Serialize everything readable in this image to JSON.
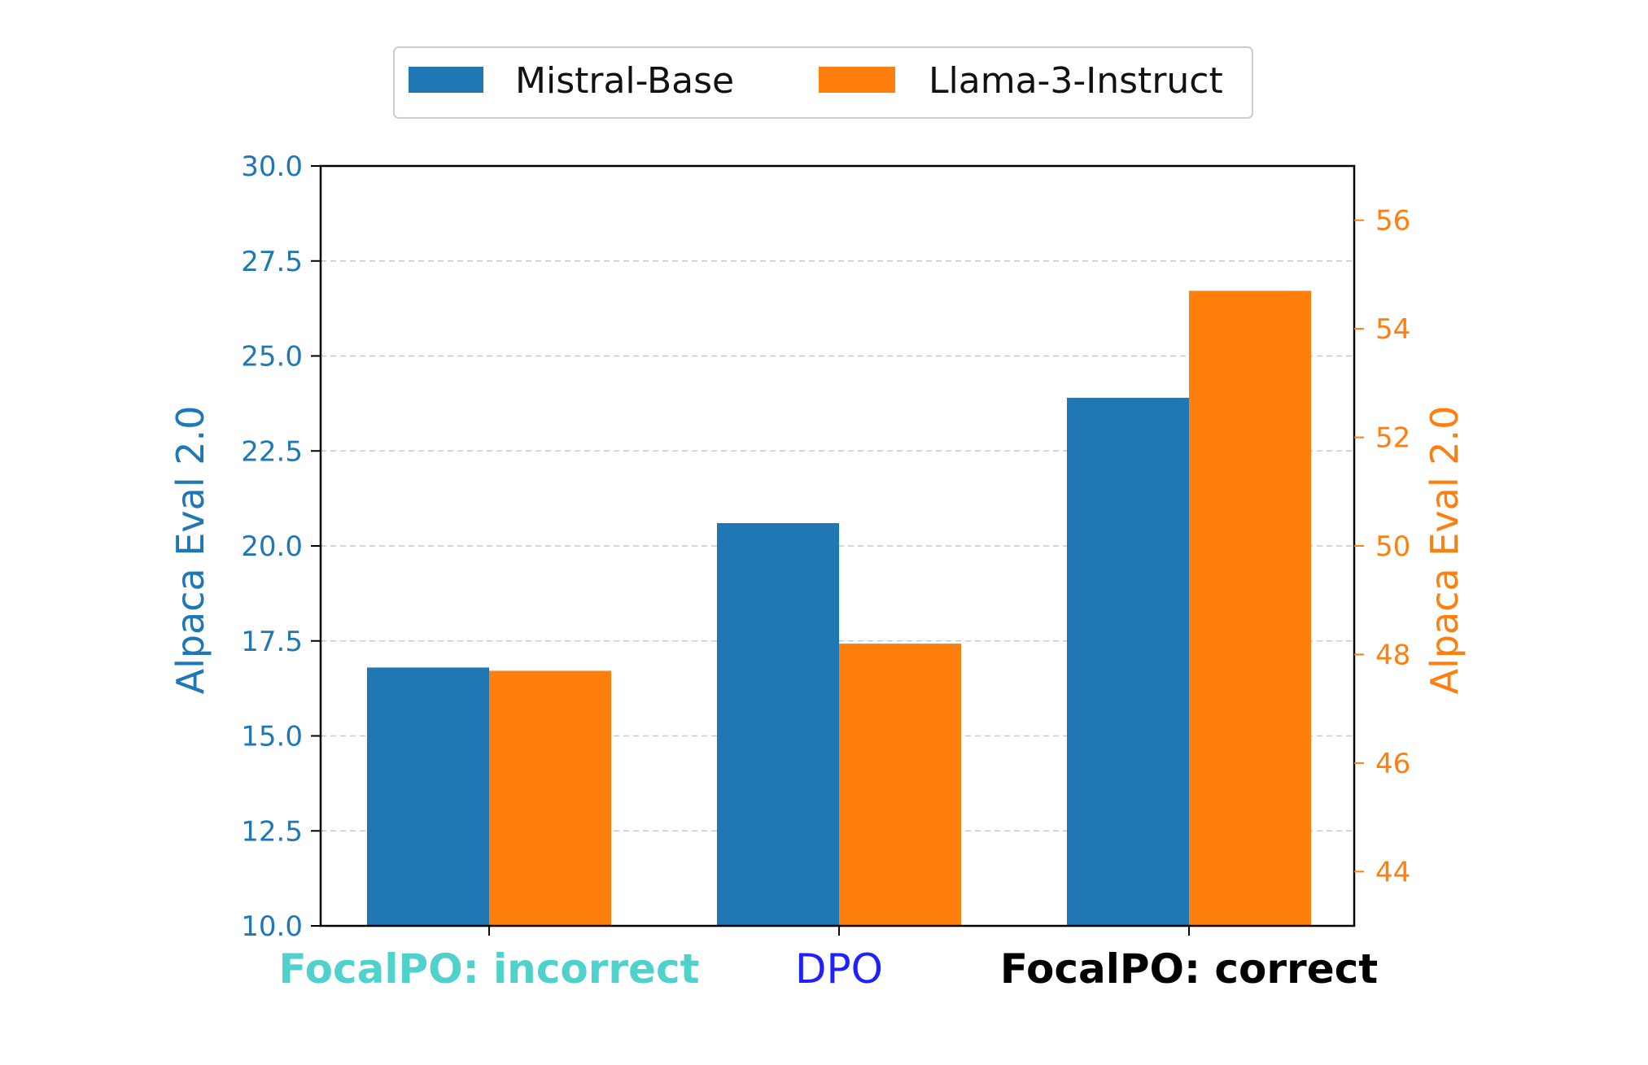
{
  "chart_data": {
    "type": "bar",
    "categories": [
      {
        "label": "FocalPO: incorrect",
        "color": "#4fd1cc",
        "weight": "bold"
      },
      {
        "label": "DPO",
        "color": "#1f1fff",
        "weight": "normal"
      },
      {
        "label": "FocalPO: correct",
        "color": "#000000",
        "weight": "bold"
      }
    ],
    "series": [
      {
        "name": "Mistral-Base",
        "color": "#1f77b4",
        "axis": "left",
        "values": [
          16.8,
          20.6,
          23.9
        ]
      },
      {
        "name": "Llama-3-Instruct",
        "color": "#ff7f0e",
        "axis": "right",
        "values": [
          47.7,
          48.2,
          54.7
        ]
      }
    ],
    "y_left": {
      "label": "Alpaca Eval 2.0",
      "color": "#1f77b4",
      "ylim": [
        10.0,
        30.0
      ],
      "ticks": [
        "10.0",
        "12.5",
        "15.0",
        "17.5",
        "20.0",
        "22.5",
        "25.0",
        "27.5",
        "30.0"
      ]
    },
    "y_right": {
      "label": "Alpaca Eval 2.0",
      "color": "#ff7f0e",
      "ylim": [
        43.0,
        57.0
      ],
      "ticks": [
        "44",
        "46",
        "48",
        "50",
        "52",
        "54",
        "56"
      ]
    },
    "grid": "horizontal-dashed",
    "legend_position": "top-center"
  }
}
